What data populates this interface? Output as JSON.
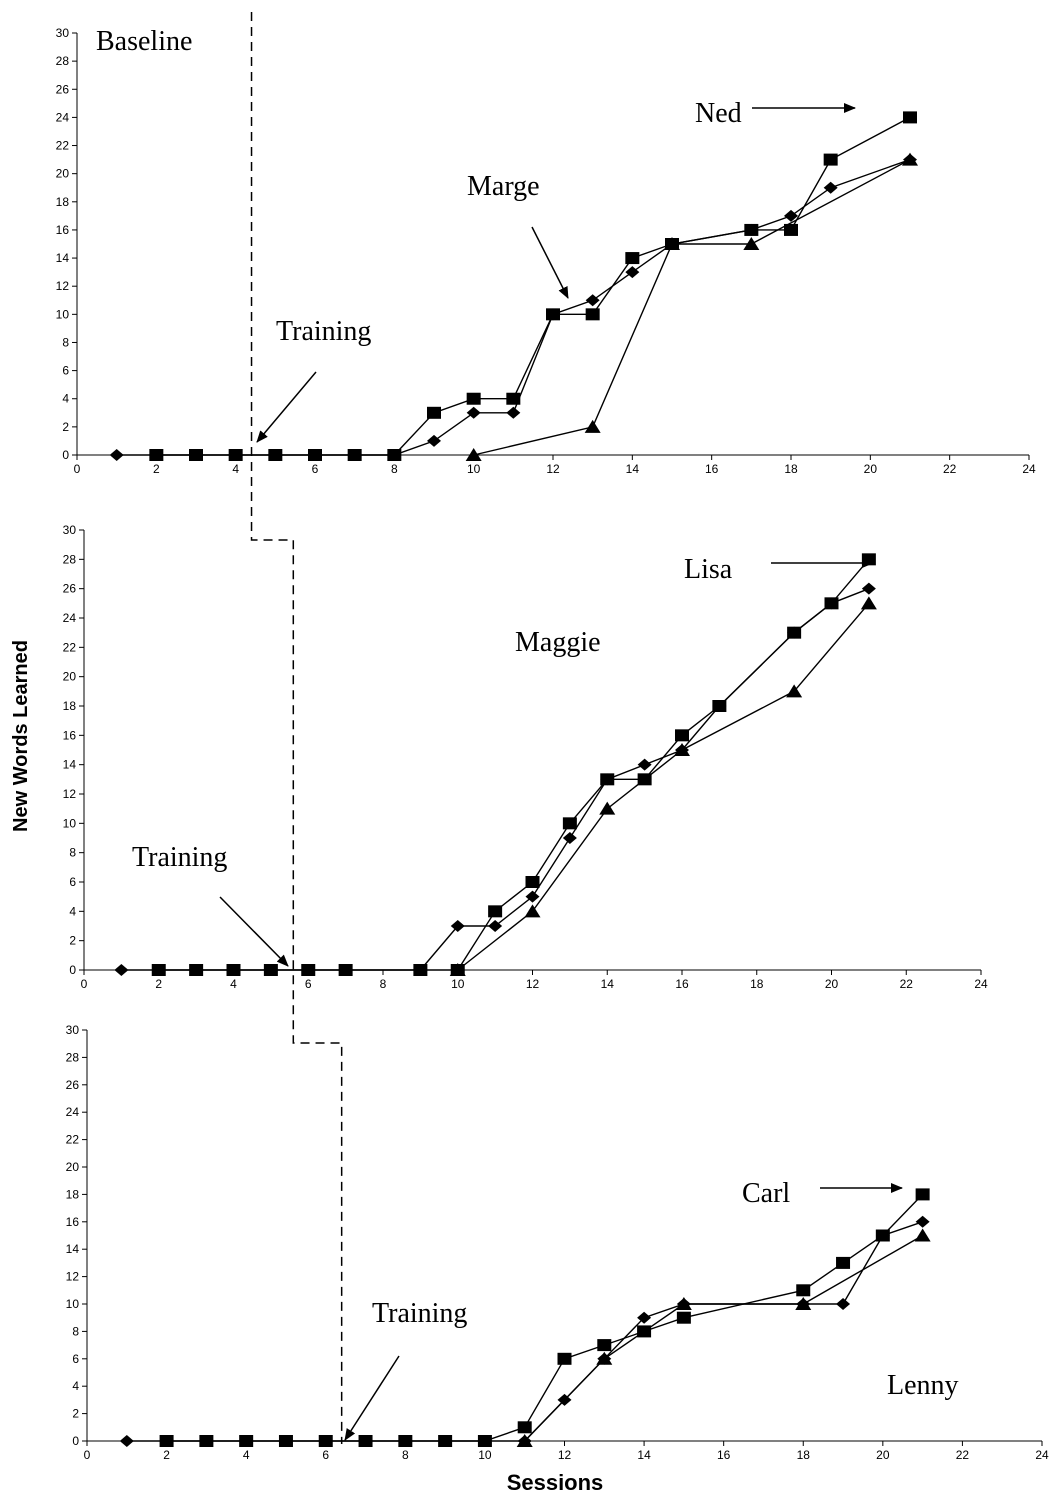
{
  "figure": {
    "y_axis_title": "New Words Learned",
    "x_axis_title": "Sessions",
    "phase_labels": {
      "baseline": "Baseline",
      "training": "Training"
    }
  },
  "chart_data": [
    {
      "type": "line",
      "xlim": [
        0,
        24
      ],
      "ylim": [
        0,
        30
      ],
      "x_ticks": [
        0,
        2,
        4,
        6,
        8,
        10,
        12,
        14,
        16,
        18,
        20,
        22,
        24
      ],
      "y_ticks": [
        0,
        2,
        4,
        6,
        8,
        10,
        12,
        14,
        16,
        18,
        20,
        22,
        24,
        26,
        28,
        30
      ],
      "grid": false,
      "phase_change_after_session": 4.4,
      "series": [
        {
          "name": "Ned",
          "marker": "square",
          "points": [
            [
              2,
              0
            ],
            [
              3,
              0
            ],
            [
              4,
              0
            ],
            [
              5,
              0
            ],
            [
              6,
              0
            ],
            [
              7,
              0
            ],
            [
              8,
              0
            ],
            [
              9,
              3
            ],
            [
              10,
              4
            ],
            [
              11,
              4
            ],
            [
              12,
              10
            ],
            [
              13,
              10
            ],
            [
              14,
              14
            ],
            [
              15,
              15
            ],
            [
              17,
              16
            ],
            [
              18,
              16
            ],
            [
              19,
              21
            ],
            [
              21,
              24
            ]
          ]
        },
        {
          "name": "Marge",
          "marker": "diamond",
          "points": [
            [
              1,
              0
            ],
            [
              2,
              0
            ],
            [
              3,
              0
            ],
            [
              4,
              0
            ],
            [
              5,
              0
            ],
            [
              6,
              0
            ],
            [
              7,
              0
            ],
            [
              8,
              0
            ],
            [
              9,
              1
            ],
            [
              10,
              3
            ],
            [
              11,
              3
            ],
            [
              12,
              10
            ],
            [
              13,
              11
            ],
            [
              14,
              13
            ],
            [
              15,
              15
            ],
            [
              17,
              16
            ],
            [
              18,
              17
            ],
            [
              19,
              19
            ],
            [
              21,
              21
            ]
          ]
        },
        {
          "name": "",
          "marker": "triangle",
          "points": [
            [
              10,
              0
            ],
            [
              13,
              2
            ],
            [
              15,
              15
            ],
            [
              17,
              15
            ],
            [
              21,
              21
            ]
          ]
        }
      ],
      "annotations": [
        {
          "text": "Baseline",
          "kind": "phase"
        },
        {
          "text": "Training",
          "kind": "phase"
        },
        {
          "text": "Ned",
          "kind": "series"
        },
        {
          "text": "Marge",
          "kind": "series"
        }
      ]
    },
    {
      "type": "line",
      "xlim": [
        0,
        24
      ],
      "ylim": [
        0,
        30
      ],
      "x_ticks": [
        0,
        2,
        4,
        6,
        8,
        10,
        12,
        14,
        16,
        18,
        20,
        22,
        24
      ],
      "y_ticks": [
        0,
        2,
        4,
        6,
        8,
        10,
        12,
        14,
        16,
        18,
        20,
        22,
        24,
        26,
        28,
        30
      ],
      "grid": false,
      "phase_change_after_session": 5.6,
      "series": [
        {
          "name": "Lisa",
          "marker": "square",
          "points": [
            [
              2,
              0
            ],
            [
              3,
              0
            ],
            [
              4,
              0
            ],
            [
              5,
              0
            ],
            [
              6,
              0
            ],
            [
              7,
              0
            ],
            [
              9,
              0
            ],
            [
              10,
              0
            ],
            [
              11,
              4
            ],
            [
              12,
              6
            ],
            [
              13,
              10
            ],
            [
              14,
              13
            ],
            [
              15,
              13
            ],
            [
              16,
              16
            ],
            [
              17,
              18
            ],
            [
              19,
              23
            ],
            [
              20,
              25
            ],
            [
              21,
              28
            ]
          ]
        },
        {
          "name": "Maggie",
          "marker": "diamond",
          "points": [
            [
              1,
              0
            ],
            [
              2,
              0
            ],
            [
              3,
              0
            ],
            [
              4,
              0
            ],
            [
              5,
              0
            ],
            [
              6,
              0
            ],
            [
              7,
              0
            ],
            [
              9,
              0
            ],
            [
              10,
              3
            ],
            [
              11,
              3
            ],
            [
              12,
              5
            ],
            [
              13,
              9
            ],
            [
              14,
              13
            ],
            [
              15,
              14
            ],
            [
              16,
              15
            ],
            [
              17,
              18
            ],
            [
              19,
              23
            ],
            [
              20,
              25
            ],
            [
              21,
              26
            ]
          ]
        },
        {
          "name": "",
          "marker": "triangle",
          "points": [
            [
              10,
              0
            ],
            [
              12,
              4
            ],
            [
              14,
              11
            ],
            [
              16,
              15
            ],
            [
              19,
              19
            ],
            [
              21,
              25
            ]
          ]
        }
      ],
      "annotations": [
        {
          "text": "Training",
          "kind": "phase"
        },
        {
          "text": "Lisa",
          "kind": "series"
        },
        {
          "text": "Maggie",
          "kind": "series"
        }
      ]
    },
    {
      "type": "line",
      "xlim": [
        0,
        24
      ],
      "ylim": [
        0,
        30
      ],
      "x_ticks": [
        0,
        2,
        4,
        6,
        8,
        10,
        12,
        14,
        16,
        18,
        20,
        22,
        24
      ],
      "y_ticks": [
        0,
        2,
        4,
        6,
        8,
        10,
        12,
        14,
        16,
        18,
        20,
        22,
        24,
        26,
        28,
        30
      ],
      "grid": false,
      "phase_change_after_session": 6.4,
      "series": [
        {
          "name": "Carl",
          "marker": "square",
          "points": [
            [
              2,
              0
            ],
            [
              3,
              0
            ],
            [
              4,
              0
            ],
            [
              5,
              0
            ],
            [
              6,
              0
            ],
            [
              7,
              0
            ],
            [
              8,
              0
            ],
            [
              9,
              0
            ],
            [
              10,
              0
            ],
            [
              11,
              1
            ],
            [
              12,
              6
            ],
            [
              13,
              7
            ],
            [
              14,
              8
            ],
            [
              15,
              9
            ],
            [
              18,
              11
            ],
            [
              19,
              13
            ],
            [
              20,
              15
            ],
            [
              21,
              18
            ]
          ]
        },
        {
          "name": "Lenny",
          "marker": "diamond",
          "points": [
            [
              1,
              0
            ],
            [
              2,
              0
            ],
            [
              3,
              0
            ],
            [
              4,
              0
            ],
            [
              5,
              0
            ],
            [
              6,
              0
            ],
            [
              7,
              0
            ],
            [
              8,
              0
            ],
            [
              9,
              0
            ],
            [
              10,
              0
            ],
            [
              11,
              0
            ],
            [
              12,
              3
            ],
            [
              13,
              6
            ],
            [
              14,
              9
            ],
            [
              15,
              10
            ],
            [
              18,
              10
            ],
            [
              19,
              10
            ],
            [
              20,
              15
            ],
            [
              21,
              16
            ]
          ]
        },
        {
          "name": "",
          "marker": "triangle",
          "points": [
            [
              11,
              0
            ],
            [
              13,
              6
            ],
            [
              15,
              10
            ],
            [
              18,
              10
            ],
            [
              21,
              15
            ]
          ]
        }
      ],
      "annotations": [
        {
          "text": "Training",
          "kind": "phase"
        },
        {
          "text": "Carl",
          "kind": "series"
        },
        {
          "text": "Lenny",
          "kind": "series"
        }
      ]
    }
  ]
}
